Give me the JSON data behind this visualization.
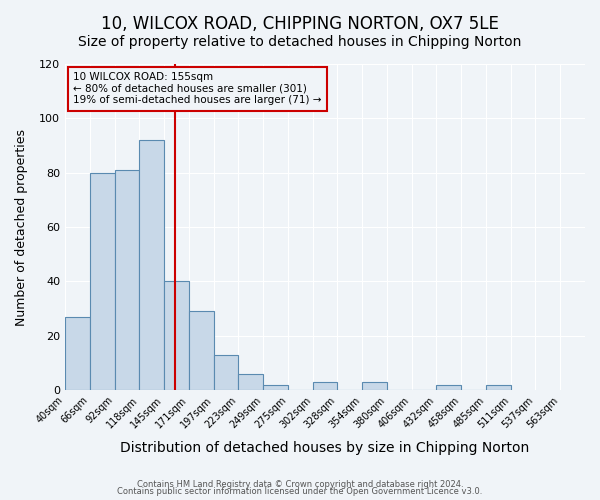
{
  "title": "10, WILCOX ROAD, CHIPPING NORTON, OX7 5LE",
  "subtitle": "Size of property relative to detached houses in Chipping Norton",
  "xlabel": "Distribution of detached houses by size in Chipping Norton",
  "ylabel": "Number of detached properties",
  "bar_values": [
    27,
    80,
    81,
    92,
    40,
    29,
    13,
    6,
    2,
    0,
    3,
    0,
    3,
    0,
    0,
    2,
    0,
    2
  ],
  "bin_labels": [
    "40sqm",
    "66sqm",
    "92sqm",
    "118sqm",
    "145sqm",
    "171sqm",
    "197sqm",
    "223sqm",
    "249sqm",
    "275sqm",
    "302sqm",
    "328sqm",
    "354sqm",
    "380sqm",
    "406sqm",
    "432sqm",
    "458sqm",
    "485sqm",
    "511sqm",
    "537sqm",
    "563sqm"
  ],
  "bar_color": "#c8d8e8",
  "bar_edge_color": "#5a8ab0",
  "ylim": [
    0,
    120
  ],
  "yticks": [
    0,
    20,
    40,
    60,
    80,
    100,
    120
  ],
  "vline_x": 155,
  "vline_color": "#cc0000",
  "annotation_title": "10 WILCOX ROAD: 155sqm",
  "annotation_line1": "← 80% of detached houses are smaller (301)",
  "annotation_line2": "19% of semi-detached houses are larger (71) →",
  "annotation_box_color": "#cc0000",
  "footer1": "Contains HM Land Registry data © Crown copyright and database right 2024.",
  "footer2": "Contains public sector information licensed under the Open Government Licence v3.0.",
  "background_color": "#f0f4f8",
  "grid_color": "#ffffff",
  "title_fontsize": 12,
  "subtitle_fontsize": 10,
  "xlabel_fontsize": 10,
  "ylabel_fontsize": 9
}
